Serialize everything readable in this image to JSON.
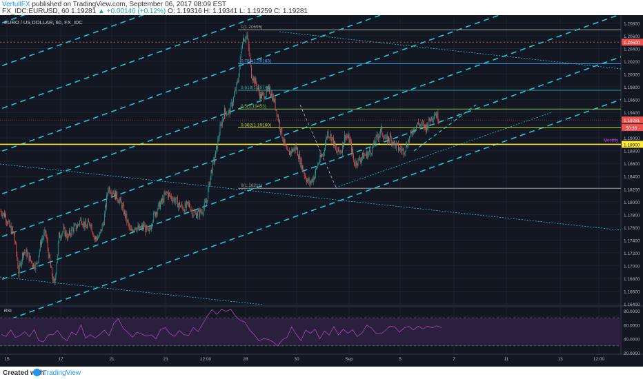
{
  "header": {
    "publisher": "VertullFX",
    "published_text": "published on TradingView.com, September 06, 2017 08:09 EST",
    "symbol_line": "FX_IDC:EURUSD, 60",
    "last": "1.19281",
    "change": "▲ +0.00146 (+0.12%)",
    "ohlc": "O: 1.19316 H: 1.19341 L: 1.19259 C: 1.19281"
  },
  "footer": {
    "created_with": "Created with",
    "brand": "TradingView"
  },
  "chart_data": {
    "type": "candlestick",
    "title": "EURO / US DOLLAR, 60, FX_IDC",
    "ylim": [
      1.164,
      1.2088
    ],
    "y_ticks": [
      "1.20800",
      "1.20600",
      "1.20400",
      "1.20200",
      "1.20000",
      "1.19800",
      "1.19600",
      "1.19400",
      "1.19200",
      "1.19000",
      "1.18800",
      "1.18600",
      "1.18400",
      "1.18200",
      "1.18000",
      "1.17800",
      "1.17600",
      "1.17400",
      "1.17200",
      "1.17000",
      "1.16800",
      "1.16600",
      "1.16400"
    ],
    "x_ticks": [
      "15",
      "17",
      "21",
      "23",
      "12:00",
      "28",
      "30",
      "Sep",
      "5",
      "7",
      "11",
      "13",
      "12:00"
    ],
    "price_path": [
      1.1785,
      1.1779,
      1.176,
      1.1748,
      1.169,
      1.1722,
      1.1718,
      1.1703,
      1.17,
      1.1738,
      1.1752,
      1.1702,
      1.1668,
      1.1746,
      1.1755,
      1.1745,
      1.1757,
      1.1761,
      1.1773,
      1.176,
      1.1768,
      1.1742,
      1.1745,
      1.177,
      1.1822,
      1.1816,
      1.1808,
      1.1795,
      1.1775,
      1.1752,
      1.1762,
      1.1756,
      1.1762,
      1.175,
      1.1775,
      1.179,
      1.18,
      1.1814,
      1.1808,
      1.1802,
      1.1794,
      1.179,
      1.1796,
      1.1782,
      1.1781,
      1.1786,
      1.1801,
      1.1847,
      1.1875,
      1.1914,
      1.1941,
      1.1939,
      1.1962,
      1.199,
      1.2055,
      1.206,
      1.2,
      1.1985,
      1.1965,
      1.1968,
      1.1975,
      1.196,
      1.193,
      1.19,
      1.1874,
      1.188,
      1.1885,
      1.1862,
      1.184,
      1.1828,
      1.184,
      1.1862,
      1.1875,
      1.1909,
      1.19,
      1.1878,
      1.188,
      1.1905,
      1.1895,
      1.186,
      1.1865,
      1.1872,
      1.1875,
      1.1883,
      1.19,
      1.1912,
      1.1896,
      1.1901,
      1.189,
      1.1883,
      1.188,
      1.1895,
      1.1912,
      1.1922,
      1.192,
      1.1916,
      1.193,
      1.194,
      1.1928
    ],
    "fib_levels": [
      {
        "label": "1(1.20695)",
        "value": 1.20695,
        "color": "#9e9e9e"
      },
      {
        "label": "0.786(1.20163)",
        "value": 1.20163,
        "color": "#42a5f5"
      },
      {
        "label": "0.618(1.19746)",
        "value": 1.19746,
        "color": "#26a69a"
      },
      {
        "label": "0.5(1.19453)",
        "value": 1.19453,
        "color": "#8bc34a"
      },
      {
        "label": "0.382(1.19160)",
        "value": 1.1916,
        "color": "#cddc39"
      },
      {
        "label": "0(1.18211)",
        "value": 1.18211,
        "color": "#9e9e9e"
      }
    ],
    "horizontal_lines": [
      {
        "label": "1.18900",
        "value": 1.189,
        "color": "#ffeb3b"
      },
      {
        "label": "1.20500",
        "value": 1.205,
        "color": "#ef5350"
      }
    ],
    "current_price_label": "1.19281",
    "countdown_label": "50:36",
    "monthly_label": "Monthly",
    "channel_lines": 8,
    "rsi": {
      "label": "RSI",
      "ylim": [
        18,
        84
      ],
      "ticks": [
        "80.0000",
        "60.0000",
        "40.0000",
        "20.0000"
      ],
      "bands": [
        70,
        30
      ],
      "values": [
        48,
        44,
        52,
        40,
        46,
        50,
        42,
        55,
        38,
        35,
        44,
        47,
        52,
        41,
        39,
        50,
        45,
        58,
        42,
        46,
        40,
        48,
        53,
        44,
        60,
        70,
        55,
        48,
        44,
        50,
        46,
        42,
        47,
        40,
        52,
        58,
        48,
        43,
        50,
        47,
        45,
        55,
        52,
        62,
        72,
        80,
        76,
        82,
        78,
        84,
        73,
        66,
        62,
        54,
        46,
        36,
        42,
        40,
        35,
        28,
        40,
        42,
        56,
        48,
        38,
        52,
        46,
        55,
        40,
        50,
        47,
        58,
        45,
        52,
        49,
        53,
        42,
        50,
        60,
        55,
        46,
        48,
        52,
        57,
        59,
        50,
        55,
        56,
        54,
        58,
        53,
        60,
        56,
        58,
        54
      ]
    }
  }
}
